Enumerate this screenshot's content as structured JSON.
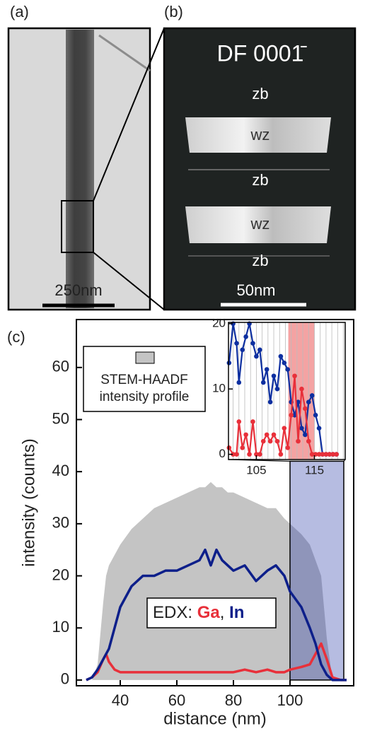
{
  "panels": {
    "a": {
      "label": "(a)",
      "scale_bar": "250nm"
    },
    "b": {
      "label": "(b)",
      "title": "DF 0001̄",
      "regions": [
        "zb",
        "wz",
        "zb",
        "wz",
        "zb"
      ],
      "scale_bar": "50nm"
    }
  },
  "chart_data": {
    "type": "line",
    "panel_label": "(c)",
    "x_label": "distance (nm)",
    "y_label": "intensity (counts)",
    "xlim": [
      24.5,
      122.5
    ],
    "ylim": [
      -1.1,
      69.2
    ],
    "xticks": [
      40,
      60,
      80,
      100
    ],
    "yticks": [
      0,
      10,
      20,
      30,
      40,
      50,
      60
    ],
    "x": [
      28,
      30,
      32,
      34,
      35,
      36,
      38,
      40,
      44,
      48,
      52,
      56,
      60,
      64,
      68,
      70,
      72,
      74,
      76,
      78,
      80,
      84,
      88,
      92,
      95,
      98,
      100,
      104,
      107,
      109,
      111,
      113,
      115,
      118,
      120
    ],
    "series": [
      {
        "name": [
          "STEM-HAADF",
          "intensity profile"
        ],
        "kind": "area",
        "color": "#c4c4c4",
        "values": [
          0,
          0,
          3,
          15,
          20,
          22,
          24,
          26,
          29,
          31,
          33,
          34,
          35,
          36,
          37,
          37,
          38,
          37,
          37,
          36,
          36,
          35,
          34,
          33,
          33,
          31,
          30,
          28,
          26,
          23,
          20,
          8,
          0,
          0,
          0
        ]
      },
      {
        "name": "Ga",
        "kind": "line",
        "color": "#e8303a",
        "values": [
          0,
          0.5,
          1.5,
          4,
          5,
          3.5,
          2,
          1.5,
          1.5,
          1.5,
          1.5,
          1.5,
          1.5,
          1.5,
          1.5,
          1.5,
          1.5,
          1.5,
          1.5,
          1.5,
          1.5,
          2,
          1.5,
          2,
          1.5,
          1.5,
          2,
          2.5,
          3,
          5,
          7,
          4,
          0.5,
          0,
          0
        ]
      },
      {
        "name": "In",
        "kind": "line",
        "color": "#0d1f8a",
        "values": [
          0,
          0.5,
          2,
          4,
          5,
          6,
          10,
          14,
          18,
          20,
          20,
          21,
          21,
          22,
          23,
          25,
          22,
          25,
          23,
          22,
          21,
          22,
          19,
          21,
          22,
          20,
          17,
          14,
          10,
          7,
          3,
          1,
          0,
          0,
          0
        ]
      }
    ],
    "edx_legend": {
      "label": "EDX:",
      "separator": ","
    },
    "zoom_box": {
      "xlim": [
        100,
        119
      ],
      "ylim": [
        0,
        42
      ]
    },
    "inset": {
      "type": "line",
      "xlim": [
        100.2,
        120.3
      ],
      "ylim": [
        -0.8,
        20.2
      ],
      "xticks": [
        105,
        115
      ],
      "yticks": [
        0,
        10,
        20
      ],
      "grid_x": [
        101,
        102,
        103,
        104,
        105,
        106,
        107,
        108,
        109,
        110,
        111,
        112,
        113,
        114,
        115,
        116,
        117,
        118,
        119,
        120
      ],
      "highlight": {
        "xlim": [
          110.5,
          115
        ],
        "color": "#f4a3a3"
      },
      "x": [
        100.3,
        101,
        101.6,
        102,
        102.6,
        103.2,
        103.8,
        104.4,
        105,
        105.6,
        106.2,
        106.8,
        107.4,
        108,
        108.6,
        109.2,
        109.8,
        110.4,
        111,
        111.6,
        112.2,
        112.8,
        113.4,
        114,
        114.6,
        115.2,
        115.8,
        116.4,
        117,
        117.6,
        118.2,
        118.8
      ],
      "series": [
        {
          "color": "#0d2fa0",
          "values": [
            14,
            20,
            17,
            11,
            16,
            18,
            20,
            17,
            15,
            16,
            11,
            13,
            8,
            12,
            10,
            15,
            14,
            13,
            8,
            6,
            8,
            4,
            3,
            8,
            9,
            6,
            4,
            0,
            0,
            0,
            0,
            0
          ]
        },
        {
          "color": "#e8303a",
          "values": [
            1,
            0,
            0,
            5,
            1,
            3,
            0,
            5,
            0,
            0,
            2,
            3,
            2,
            3,
            2,
            0,
            4,
            1,
            6,
            12,
            2,
            10,
            7,
            2,
            0,
            0,
            0,
            0,
            0,
            0,
            0,
            0
          ]
        }
      ]
    }
  }
}
